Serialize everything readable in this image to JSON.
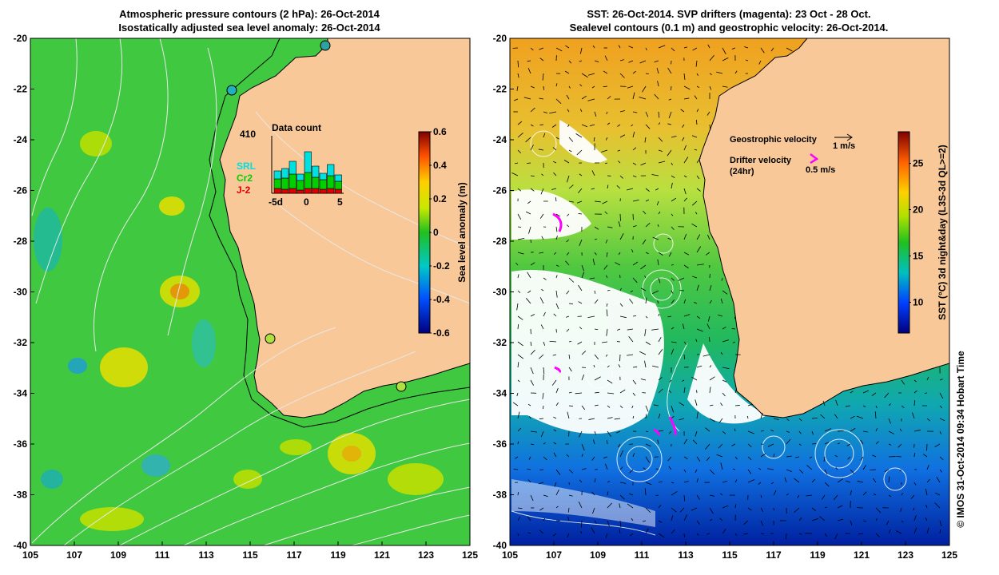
{
  "left_panel": {
    "title_line1": "Atmospheric pressure contours (2 hPa): 26-Oct-2014",
    "title_line2": "Isostatically adjusted sea level anomaly: 26-Oct-2014",
    "colorbar_label": "Sea level anomaly (m)",
    "colorbar_ticks": [
      "0.6",
      "0.4",
      "0.2",
      "0",
      "-0.2",
      "-0.4",
      "-0.6"
    ],
    "inset": {
      "title": "Data count",
      "max_label": "410",
      "x_ticks": [
        "-5d",
        "0",
        "5"
      ],
      "legend": [
        {
          "name": "SRL",
          "color": "#00e0e0"
        },
        {
          "name": "Cr2",
          "color": "#00d000"
        },
        {
          "name": "J-2",
          "color": "#e00000"
        }
      ]
    }
  },
  "right_panel": {
    "title_line1": "SST: 26-Oct-2014. SVP drifters (magenta): 23 Oct - 28 Oct.",
    "title_line2": "Sealevel contours (0.1 m) and geostrophic velocity: 26-Oct-2014.",
    "colorbar_label": "SST (°C) 3d night&day (L3S-3d QL>=2)",
    "colorbar_ticks": [
      "25",
      "20",
      "15",
      "10"
    ],
    "legend_geostrophic": "Geostrophic velocity",
    "legend_geostrophic_scale": "1 m/s",
    "legend_drifter": "Drifter velocity",
    "legend_drifter_sub": "(24hr)",
    "legend_drifter_scale": "0.5 m/s"
  },
  "axes": {
    "x_ticks": [
      "105",
      "107",
      "109",
      "111",
      "113",
      "115",
      "117",
      "119",
      "121",
      "123",
      "125"
    ],
    "y_ticks": [
      "-20",
      "-22",
      "-24",
      "-26",
      "-28",
      "-30",
      "-32",
      "-34",
      "-36",
      "-38",
      "-40"
    ]
  },
  "credit": "© IMOS 31-Oct-2014 09:34 Hobart Time",
  "colors": {
    "land": "#f8c898",
    "sea_green": "#3cc83c",
    "drifter": "#ff00ff"
  }
}
